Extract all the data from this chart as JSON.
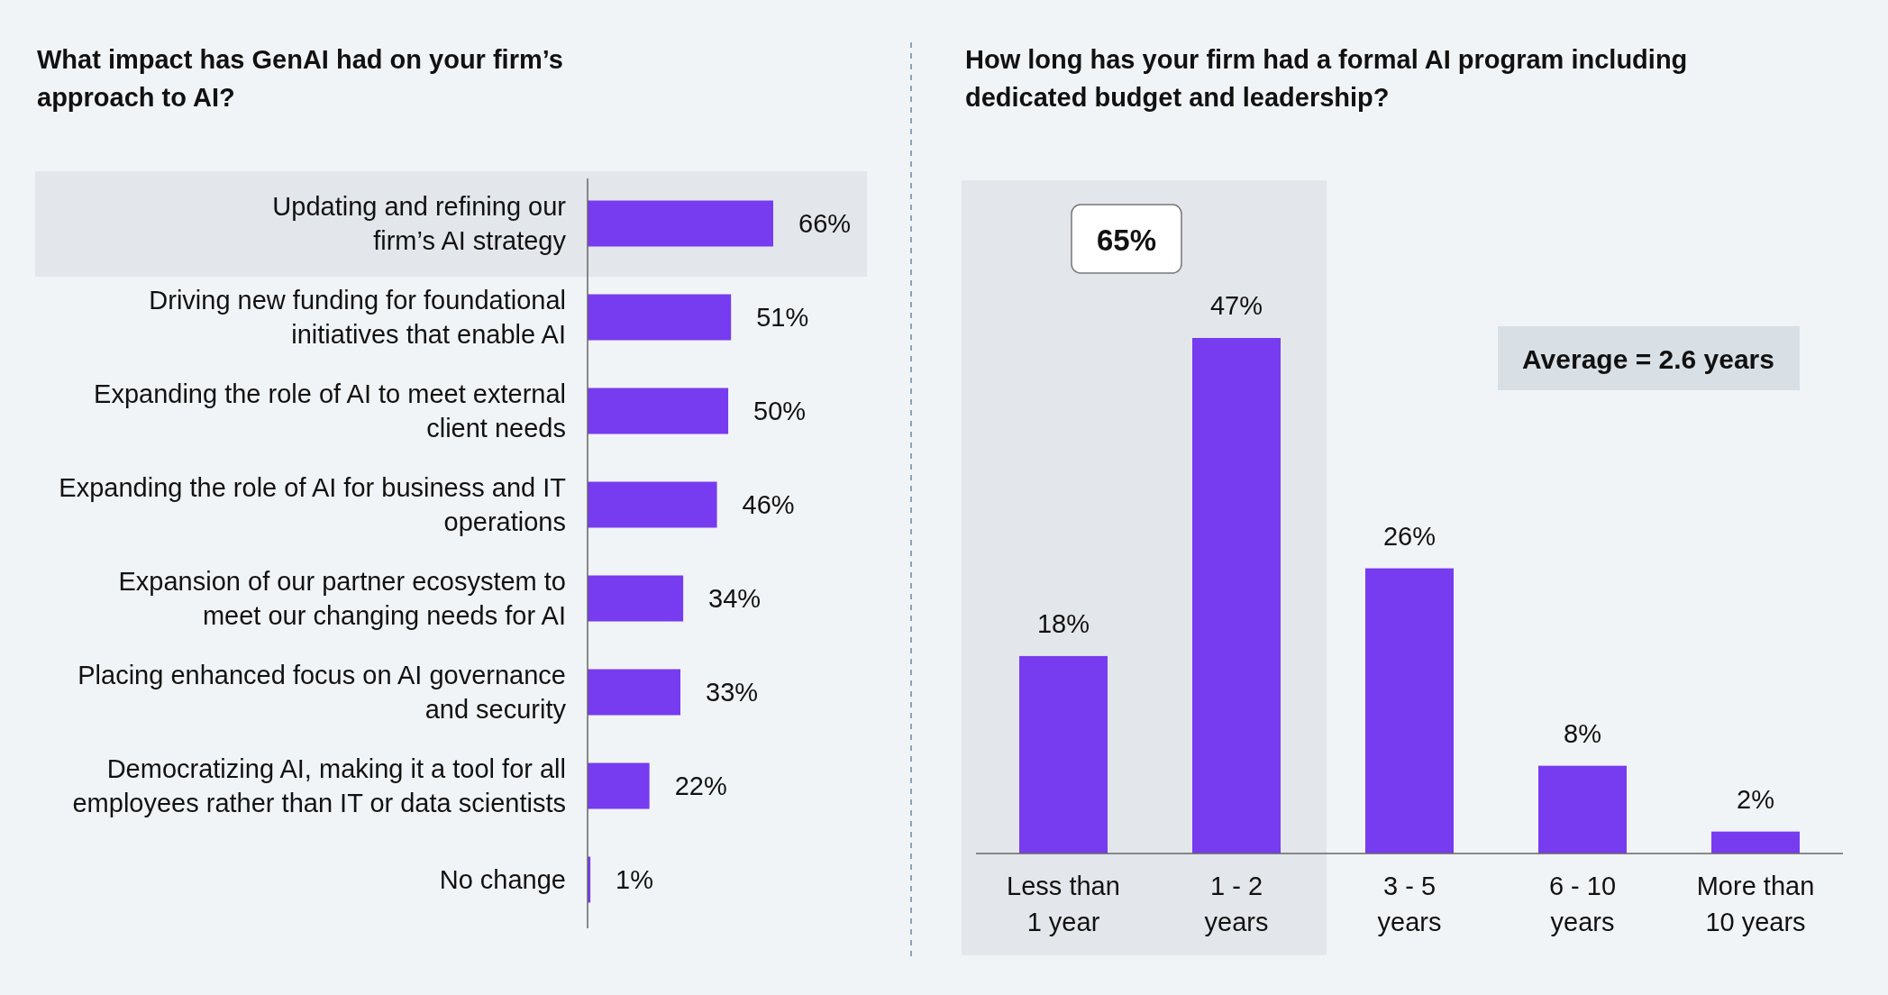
{
  "chart_data": [
    {
      "type": "bar",
      "orientation": "horizontal",
      "title": "What impact has GenAI had on your firm’s\napproach to AI?",
      "categories": [
        "Updating and refining our\nfirm’s AI strategy",
        "Driving new funding for foundational\ninitiatives that enable AI",
        "Expanding the role of AI to meet external\nclient needs",
        "Expanding the role of AI for business and IT\noperations",
        "Expansion of our partner ecosystem to\nmeet our changing needs for AI",
        "Placing enhanced focus on AI governance\nand security",
        "Democratizing AI, making it a tool for all\nemployees rather than IT or data scientists",
        "No change"
      ],
      "values": [
        66,
        51,
        50,
        46,
        34,
        33,
        22,
        1
      ],
      "color": "#773bf0",
      "value_labels": [
        "66%",
        "51%",
        "50%",
        "46%",
        "34%",
        "33%",
        "22%",
        "1%"
      ],
      "bands": [
        {
          "axis": "y",
          "from": "Updating and refining our\nfirm’s AI strategy",
          "to": "Updating and refining our\nfirm’s AI strategy",
          "color": "#e3e6ea"
        }
      ]
    },
    {
      "type": "bar",
      "title": "How long has your firm had a formal AI program including\ndedicated budget and leadership?",
      "categories": [
        "Less than\n1 year",
        "1 - 2\nyears",
        "3 - 5\nyears",
        "6 - 10\nyears",
        "More than\n10 years"
      ],
      "values": [
        18,
        47,
        26,
        8,
        2
      ],
      "color": "#773bf0",
      "value_labels": [
        "18%",
        "47%",
        "26%",
        "8%",
        "2%"
      ],
      "bands": [
        {
          "axis": "x",
          "from": "Less than\n1 year",
          "to": "1 - 2\nyears",
          "label": "65%",
          "color": "#e3e6ea"
        }
      ],
      "annotations": [
        "Average = 2.6 years"
      ]
    }
  ]
}
